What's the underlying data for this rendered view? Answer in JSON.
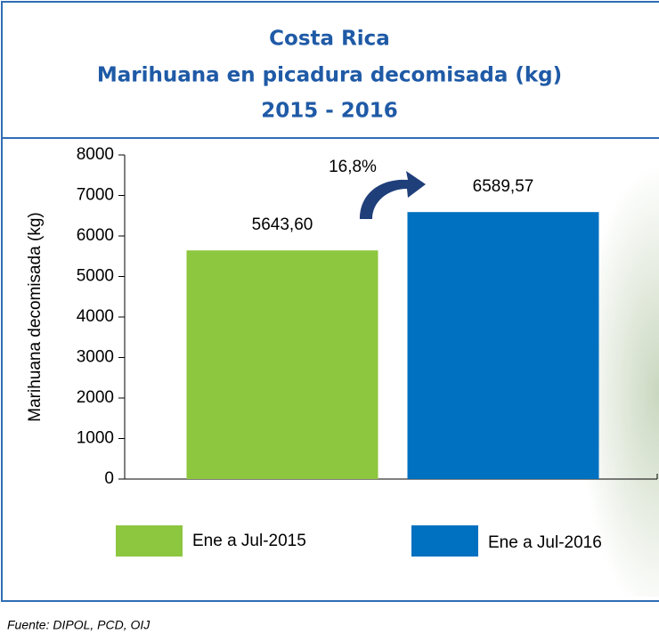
{
  "chart_data": {
    "type": "bar",
    "title": "Costa Rica",
    "subtitle": "Marihuana en picadura decomisada (kg)",
    "period": "2015 - 2016",
    "y_label": "Marihuana decomisada (kg)",
    "series": [
      {
        "name": "Ene a Jul-2015",
        "color": "#8dc63f",
        "values": [
          5643.6
        ],
        "value_labels": [
          "5643,60"
        ]
      },
      {
        "name": "Ene a Jul-2016",
        "color": "#0070c0",
        "values": [
          6589.57
        ],
        "value_labels": [
          "6589,57"
        ]
      }
    ],
    "annotation": "16,8%",
    "ylim": [
      0,
      8000
    ],
    "yticks": [
      0,
      1000,
      2000,
      3000,
      4000,
      5000,
      6000,
      7000,
      8000
    ],
    "grid": false,
    "source": "Fuente: DIPOL, PCD, OIJ"
  }
}
